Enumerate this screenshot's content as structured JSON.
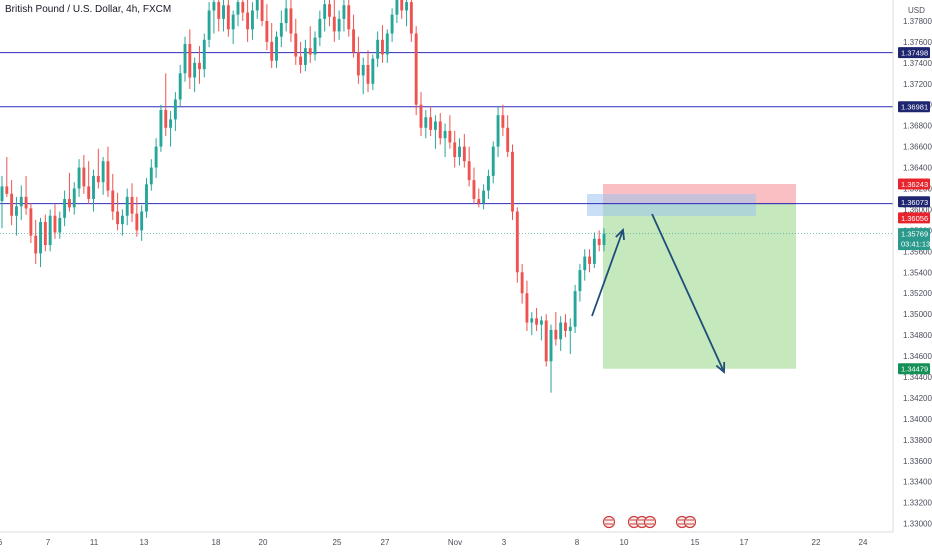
{
  "header": {
    "symbol_title": "British Pound / U.S. Dollar, 4h, FXCM"
  },
  "colors": {
    "up": "#26a69a",
    "down": "#ef5350",
    "level_line": "#2f2cbb",
    "level_label_bg": "#1e2670",
    "stop_zone": "#f7a9ad",
    "target_zone": "#a6dd9a",
    "entry_zone": "#9ec5ec",
    "arrow": "#1f4e79",
    "price_line": "#26a69a",
    "stop_label_bg": "#e8252d",
    "target_label_bg": "#149056",
    "price_label_bg": "#2b9a8c"
  },
  "chart_data": {
    "type": "candlestick",
    "currency": "USD",
    "y_axis": {
      "ticks": [
        "1.37800",
        "1.37600",
        "1.37400",
        "1.37200",
        "1.37000",
        "1.36800",
        "1.36600",
        "1.36400",
        "1.36200",
        "1.36000",
        "1.35800",
        "1.35600",
        "1.35400",
        "1.35200",
        "1.35000",
        "1.34800",
        "1.34600",
        "1.34400",
        "1.34200",
        "1.34000",
        "1.33800",
        "1.33600",
        "1.33400",
        "1.33200",
        "1.33000"
      ],
      "range": [
        1.3292,
        1.38
      ]
    },
    "x_axis": {
      "ticks": [
        "6",
        "7",
        "11",
        "13",
        "18",
        "20",
        "25",
        "27",
        "Nov",
        "3",
        "8",
        "10",
        "15",
        "17",
        "22",
        "24"
      ]
    },
    "horizontal_levels": [
      1.37498,
      1.36981,
      1.36056
    ],
    "last_price": {
      "value": "1.35769",
      "countdown": "03:41:13"
    },
    "position": {
      "entry": 1.36056,
      "stop_loss": 1.36243,
      "take_profit": 1.34479,
      "entry_label": "1.36073"
    },
    "price_labels": {
      "level_1": "1.37498",
      "level_2": "1.36981",
      "stop": "1.36243",
      "entry": "1.36073",
      "entry_level": "1.36056",
      "last": "1.35769",
      "target": "1.34479"
    },
    "series": [
      {
        "o": 1.3608,
        "h": 1.3632,
        "l": 1.3582,
        "c": 1.3622
      },
      {
        "o": 1.3622,
        "h": 1.365,
        "l": 1.3612,
        "c": 1.3615
      },
      {
        "o": 1.3615,
        "h": 1.3628,
        "l": 1.3585,
        "c": 1.3594
      },
      {
        "o": 1.3594,
        "h": 1.3612,
        "l": 1.3575,
        "c": 1.3603
      },
      {
        "o": 1.3603,
        "h": 1.3623,
        "l": 1.359,
        "c": 1.3612
      },
      {
        "o": 1.3612,
        "h": 1.3632,
        "l": 1.3595,
        "c": 1.3601
      },
      {
        "o": 1.3601,
        "h": 1.3606,
        "l": 1.3568,
        "c": 1.3575
      },
      {
        "o": 1.3575,
        "h": 1.359,
        "l": 1.3548,
        "c": 1.3558
      },
      {
        "o": 1.3558,
        "h": 1.3592,
        "l": 1.3545,
        "c": 1.3588
      },
      {
        "o": 1.3588,
        "h": 1.3595,
        "l": 1.356,
        "c": 1.3566
      },
      {
        "o": 1.3566,
        "h": 1.36,
        "l": 1.356,
        "c": 1.3594
      },
      {
        "o": 1.3594,
        "h": 1.3605,
        "l": 1.3572,
        "c": 1.3578
      },
      {
        "o": 1.3578,
        "h": 1.3598,
        "l": 1.3572,
        "c": 1.3592
      },
      {
        "o": 1.3592,
        "h": 1.3618,
        "l": 1.3584,
        "c": 1.361
      },
      {
        "o": 1.361,
        "h": 1.3635,
        "l": 1.3598,
        "c": 1.3602
      },
      {
        "o": 1.3602,
        "h": 1.3626,
        "l": 1.3595,
        "c": 1.362
      },
      {
        "o": 1.362,
        "h": 1.3648,
        "l": 1.3612,
        "c": 1.364
      },
      {
        "o": 1.364,
        "h": 1.3652,
        "l": 1.3615,
        "c": 1.3622
      },
      {
        "o": 1.3622,
        "h": 1.3646,
        "l": 1.3605,
        "c": 1.361
      },
      {
        "o": 1.361,
        "h": 1.3638,
        "l": 1.3598,
        "c": 1.3632
      },
      {
        "o": 1.3632,
        "h": 1.3658,
        "l": 1.362,
        "c": 1.3626
      },
      {
        "o": 1.3626,
        "h": 1.365,
        "l": 1.3614,
        "c": 1.3646
      },
      {
        "o": 1.3646,
        "h": 1.366,
        "l": 1.3612,
        "c": 1.3618
      },
      {
        "o": 1.3618,
        "h": 1.3634,
        "l": 1.359,
        "c": 1.3598
      },
      {
        "o": 1.3598,
        "h": 1.3616,
        "l": 1.358,
        "c": 1.3586
      },
      {
        "o": 1.3586,
        "h": 1.36,
        "l": 1.3575,
        "c": 1.3594
      },
      {
        "o": 1.3594,
        "h": 1.362,
        "l": 1.3585,
        "c": 1.3612
      },
      {
        "o": 1.3612,
        "h": 1.3625,
        "l": 1.3588,
        "c": 1.3596
      },
      {
        "o": 1.3596,
        "h": 1.3612,
        "l": 1.3574,
        "c": 1.358
      },
      {
        "o": 1.358,
        "h": 1.3604,
        "l": 1.357,
        "c": 1.3598
      },
      {
        "o": 1.3598,
        "h": 1.363,
        "l": 1.3592,
        "c": 1.3624
      },
      {
        "o": 1.3624,
        "h": 1.3648,
        "l": 1.3618,
        "c": 1.364
      },
      {
        "o": 1.364,
        "h": 1.3668,
        "l": 1.363,
        "c": 1.366
      },
      {
        "o": 1.366,
        "h": 1.37,
        "l": 1.3655,
        "c": 1.3695
      },
      {
        "o": 1.3695,
        "h": 1.373,
        "l": 1.367,
        "c": 1.3678
      },
      {
        "o": 1.3678,
        "h": 1.3694,
        "l": 1.366,
        "c": 1.3686
      },
      {
        "o": 1.3686,
        "h": 1.3712,
        "l": 1.3675,
        "c": 1.3705
      },
      {
        "o": 1.3705,
        "h": 1.3738,
        "l": 1.3698,
        "c": 1.373
      },
      {
        "o": 1.373,
        "h": 1.3765,
        "l": 1.3722,
        "c": 1.3758
      },
      {
        "o": 1.3758,
        "h": 1.3772,
        "l": 1.3715,
        "c": 1.3726
      },
      {
        "o": 1.3726,
        "h": 1.3745,
        "l": 1.3712,
        "c": 1.374
      },
      {
        "o": 1.374,
        "h": 1.3756,
        "l": 1.372,
        "c": 1.3734
      },
      {
        "o": 1.3734,
        "h": 1.3768,
        "l": 1.3726,
        "c": 1.3762
      },
      {
        "o": 1.3762,
        "h": 1.3798,
        "l": 1.3755,
        "c": 1.379
      },
      {
        "o": 1.379,
        "h": 1.3812,
        "l": 1.3768,
        "c": 1.3798
      },
      {
        "o": 1.3798,
        "h": 1.381,
        "l": 1.377,
        "c": 1.3782
      },
      {
        "o": 1.3782,
        "h": 1.3805,
        "l": 1.377,
        "c": 1.3795
      },
      {
        "o": 1.3795,
        "h": 1.3812,
        "l": 1.3765,
        "c": 1.3772
      },
      {
        "o": 1.3772,
        "h": 1.379,
        "l": 1.3758,
        "c": 1.3786
      },
      {
        "o": 1.3786,
        "h": 1.381,
        "l": 1.3775,
        "c": 1.3798
      },
      {
        "o": 1.3798,
        "h": 1.3812,
        "l": 1.378,
        "c": 1.3788
      },
      {
        "o": 1.3788,
        "h": 1.3806,
        "l": 1.376,
        "c": 1.3772
      },
      {
        "o": 1.3772,
        "h": 1.3798,
        "l": 1.3762,
        "c": 1.379
      },
      {
        "o": 1.379,
        "h": 1.3812,
        "l": 1.3782,
        "c": 1.38
      },
      {
        "o": 1.38,
        "h": 1.3812,
        "l": 1.3775,
        "c": 1.378
      },
      {
        "o": 1.378,
        "h": 1.3796,
        "l": 1.3752,
        "c": 1.376
      },
      {
        "o": 1.376,
        "h": 1.3778,
        "l": 1.3735,
        "c": 1.3742
      },
      {
        "o": 1.3742,
        "h": 1.377,
        "l": 1.3735,
        "c": 1.3765
      },
      {
        "o": 1.3765,
        "h": 1.379,
        "l": 1.3755,
        "c": 1.3778
      },
      {
        "o": 1.3778,
        "h": 1.38,
        "l": 1.377,
        "c": 1.3792
      },
      {
        "o": 1.3792,
        "h": 1.3812,
        "l": 1.376,
        "c": 1.3768
      },
      {
        "o": 1.3768,
        "h": 1.3782,
        "l": 1.3738,
        "c": 1.3746
      },
      {
        "o": 1.3746,
        "h": 1.376,
        "l": 1.373,
        "c": 1.3738
      },
      {
        "o": 1.3738,
        "h": 1.3762,
        "l": 1.3732,
        "c": 1.3754
      },
      {
        "o": 1.3754,
        "h": 1.3775,
        "l": 1.374,
        "c": 1.3748
      },
      {
        "o": 1.3748,
        "h": 1.377,
        "l": 1.3742,
        "c": 1.3764
      },
      {
        "o": 1.3764,
        "h": 1.379,
        "l": 1.3756,
        "c": 1.3782
      },
      {
        "o": 1.3782,
        "h": 1.3806,
        "l": 1.377,
        "c": 1.3796
      },
      {
        "o": 1.3796,
        "h": 1.3812,
        "l": 1.3775,
        "c": 1.3784
      },
      {
        "o": 1.3784,
        "h": 1.38,
        "l": 1.376,
        "c": 1.377
      },
      {
        "o": 1.377,
        "h": 1.379,
        "l": 1.3762,
        "c": 1.3782
      },
      {
        "o": 1.3782,
        "h": 1.3805,
        "l": 1.377,
        "c": 1.3795
      },
      {
        "o": 1.3795,
        "h": 1.381,
        "l": 1.3765,
        "c": 1.3772
      },
      {
        "o": 1.3772,
        "h": 1.3786,
        "l": 1.3745,
        "c": 1.375
      },
      {
        "o": 1.375,
        "h": 1.3765,
        "l": 1.372,
        "c": 1.3728
      },
      {
        "o": 1.3728,
        "h": 1.3745,
        "l": 1.371,
        "c": 1.3738
      },
      {
        "o": 1.3738,
        "h": 1.3752,
        "l": 1.3712,
        "c": 1.372
      },
      {
        "o": 1.372,
        "h": 1.3748,
        "l": 1.3714,
        "c": 1.3744
      },
      {
        "o": 1.3744,
        "h": 1.377,
        "l": 1.3736,
        "c": 1.3762
      },
      {
        "o": 1.3762,
        "h": 1.3776,
        "l": 1.374,
        "c": 1.3748
      },
      {
        "o": 1.3748,
        "h": 1.3772,
        "l": 1.374,
        "c": 1.3768
      },
      {
        "o": 1.3768,
        "h": 1.3792,
        "l": 1.376,
        "c": 1.3786
      },
      {
        "o": 1.3786,
        "h": 1.381,
        "l": 1.3778,
        "c": 1.38
      },
      {
        "o": 1.38,
        "h": 1.3812,
        "l": 1.3782,
        "c": 1.379
      },
      {
        "o": 1.379,
        "h": 1.3806,
        "l": 1.3775,
        "c": 1.3798
      },
      {
        "o": 1.3798,
        "h": 1.3812,
        "l": 1.376,
        "c": 1.3768
      },
      {
        "o": 1.3768,
        "h": 1.3775,
        "l": 1.369,
        "c": 1.37
      },
      {
        "o": 1.37,
        "h": 1.3712,
        "l": 1.367,
        "c": 1.3678
      },
      {
        "o": 1.3678,
        "h": 1.3695,
        "l": 1.3668,
        "c": 1.3688
      },
      {
        "o": 1.3688,
        "h": 1.3698,
        "l": 1.367,
        "c": 1.3676
      },
      {
        "o": 1.3676,
        "h": 1.369,
        "l": 1.3658,
        "c": 1.3684
      },
      {
        "o": 1.3684,
        "h": 1.3692,
        "l": 1.3662,
        "c": 1.3668
      },
      {
        "o": 1.3668,
        "h": 1.3682,
        "l": 1.365,
        "c": 1.3675
      },
      {
        "o": 1.3675,
        "h": 1.369,
        "l": 1.3658,
        "c": 1.3664
      },
      {
        "o": 1.3664,
        "h": 1.3675,
        "l": 1.364,
        "c": 1.365
      },
      {
        "o": 1.365,
        "h": 1.3668,
        "l": 1.3642,
        "c": 1.366
      },
      {
        "o": 1.366,
        "h": 1.3672,
        "l": 1.364,
        "c": 1.3646
      },
      {
        "o": 1.3646,
        "h": 1.366,
        "l": 1.3622,
        "c": 1.3628
      },
      {
        "o": 1.3628,
        "h": 1.364,
        "l": 1.3605,
        "c": 1.361
      },
      {
        "o": 1.361,
        "h": 1.362,
        "l": 1.3602,
        "c": 1.3606
      },
      {
        "o": 1.3606,
        "h": 1.3624,
        "l": 1.36,
        "c": 1.3618
      },
      {
        "o": 1.3618,
        "h": 1.3638,
        "l": 1.361,
        "c": 1.3632
      },
      {
        "o": 1.3632,
        "h": 1.3665,
        "l": 1.3625,
        "c": 1.366
      },
      {
        "o": 1.366,
        "h": 1.3698,
        "l": 1.365,
        "c": 1.369
      },
      {
        "o": 1.369,
        "h": 1.37,
        "l": 1.367,
        "c": 1.3678
      },
      {
        "o": 1.3678,
        "h": 1.369,
        "l": 1.365,
        "c": 1.3655
      },
      {
        "o": 1.3655,
        "h": 1.3662,
        "l": 1.359,
        "c": 1.3598
      },
      {
        "o": 1.3598,
        "h": 1.3602,
        "l": 1.353,
        "c": 1.354
      },
      {
        "o": 1.354,
        "h": 1.3548,
        "l": 1.351,
        "c": 1.352
      },
      {
        "o": 1.352,
        "h": 1.3532,
        "l": 1.3484,
        "c": 1.3492
      },
      {
        "o": 1.3492,
        "h": 1.3502,
        "l": 1.348,
        "c": 1.3496
      },
      {
        "o": 1.3496,
        "h": 1.3506,
        "l": 1.3484,
        "c": 1.349
      },
      {
        "o": 1.349,
        "h": 1.3498,
        "l": 1.3475,
        "c": 1.3494
      },
      {
        "o": 1.3494,
        "h": 1.35,
        "l": 1.345,
        "c": 1.3455
      },
      {
        "o": 1.3455,
        "h": 1.349,
        "l": 1.3425,
        "c": 1.3485
      },
      {
        "o": 1.3485,
        "h": 1.3502,
        "l": 1.347,
        "c": 1.3476
      },
      {
        "o": 1.3476,
        "h": 1.3498,
        "l": 1.3465,
        "c": 1.3492
      },
      {
        "o": 1.3492,
        "h": 1.35,
        "l": 1.3478,
        "c": 1.3484
      },
      {
        "o": 1.3484,
        "h": 1.3496,
        "l": 1.3462,
        "c": 1.3488
      },
      {
        "o": 1.3488,
        "h": 1.3528,
        "l": 1.3482,
        "c": 1.3522
      },
      {
        "o": 1.3522,
        "h": 1.3548,
        "l": 1.3512,
        "c": 1.3542
      },
      {
        "o": 1.3542,
        "h": 1.3562,
        "l": 1.3532,
        "c": 1.3555
      },
      {
        "o": 1.3555,
        "h": 1.3562,
        "l": 1.354,
        "c": 1.3548
      },
      {
        "o": 1.3548,
        "h": 1.3578,
        "l": 1.3544,
        "c": 1.3572
      },
      {
        "o": 1.3572,
        "h": 1.358,
        "l": 1.356,
        "c": 1.3566
      },
      {
        "o": 1.3566,
        "h": 1.3582,
        "l": 1.356,
        "c": 1.3577
      }
    ]
  }
}
